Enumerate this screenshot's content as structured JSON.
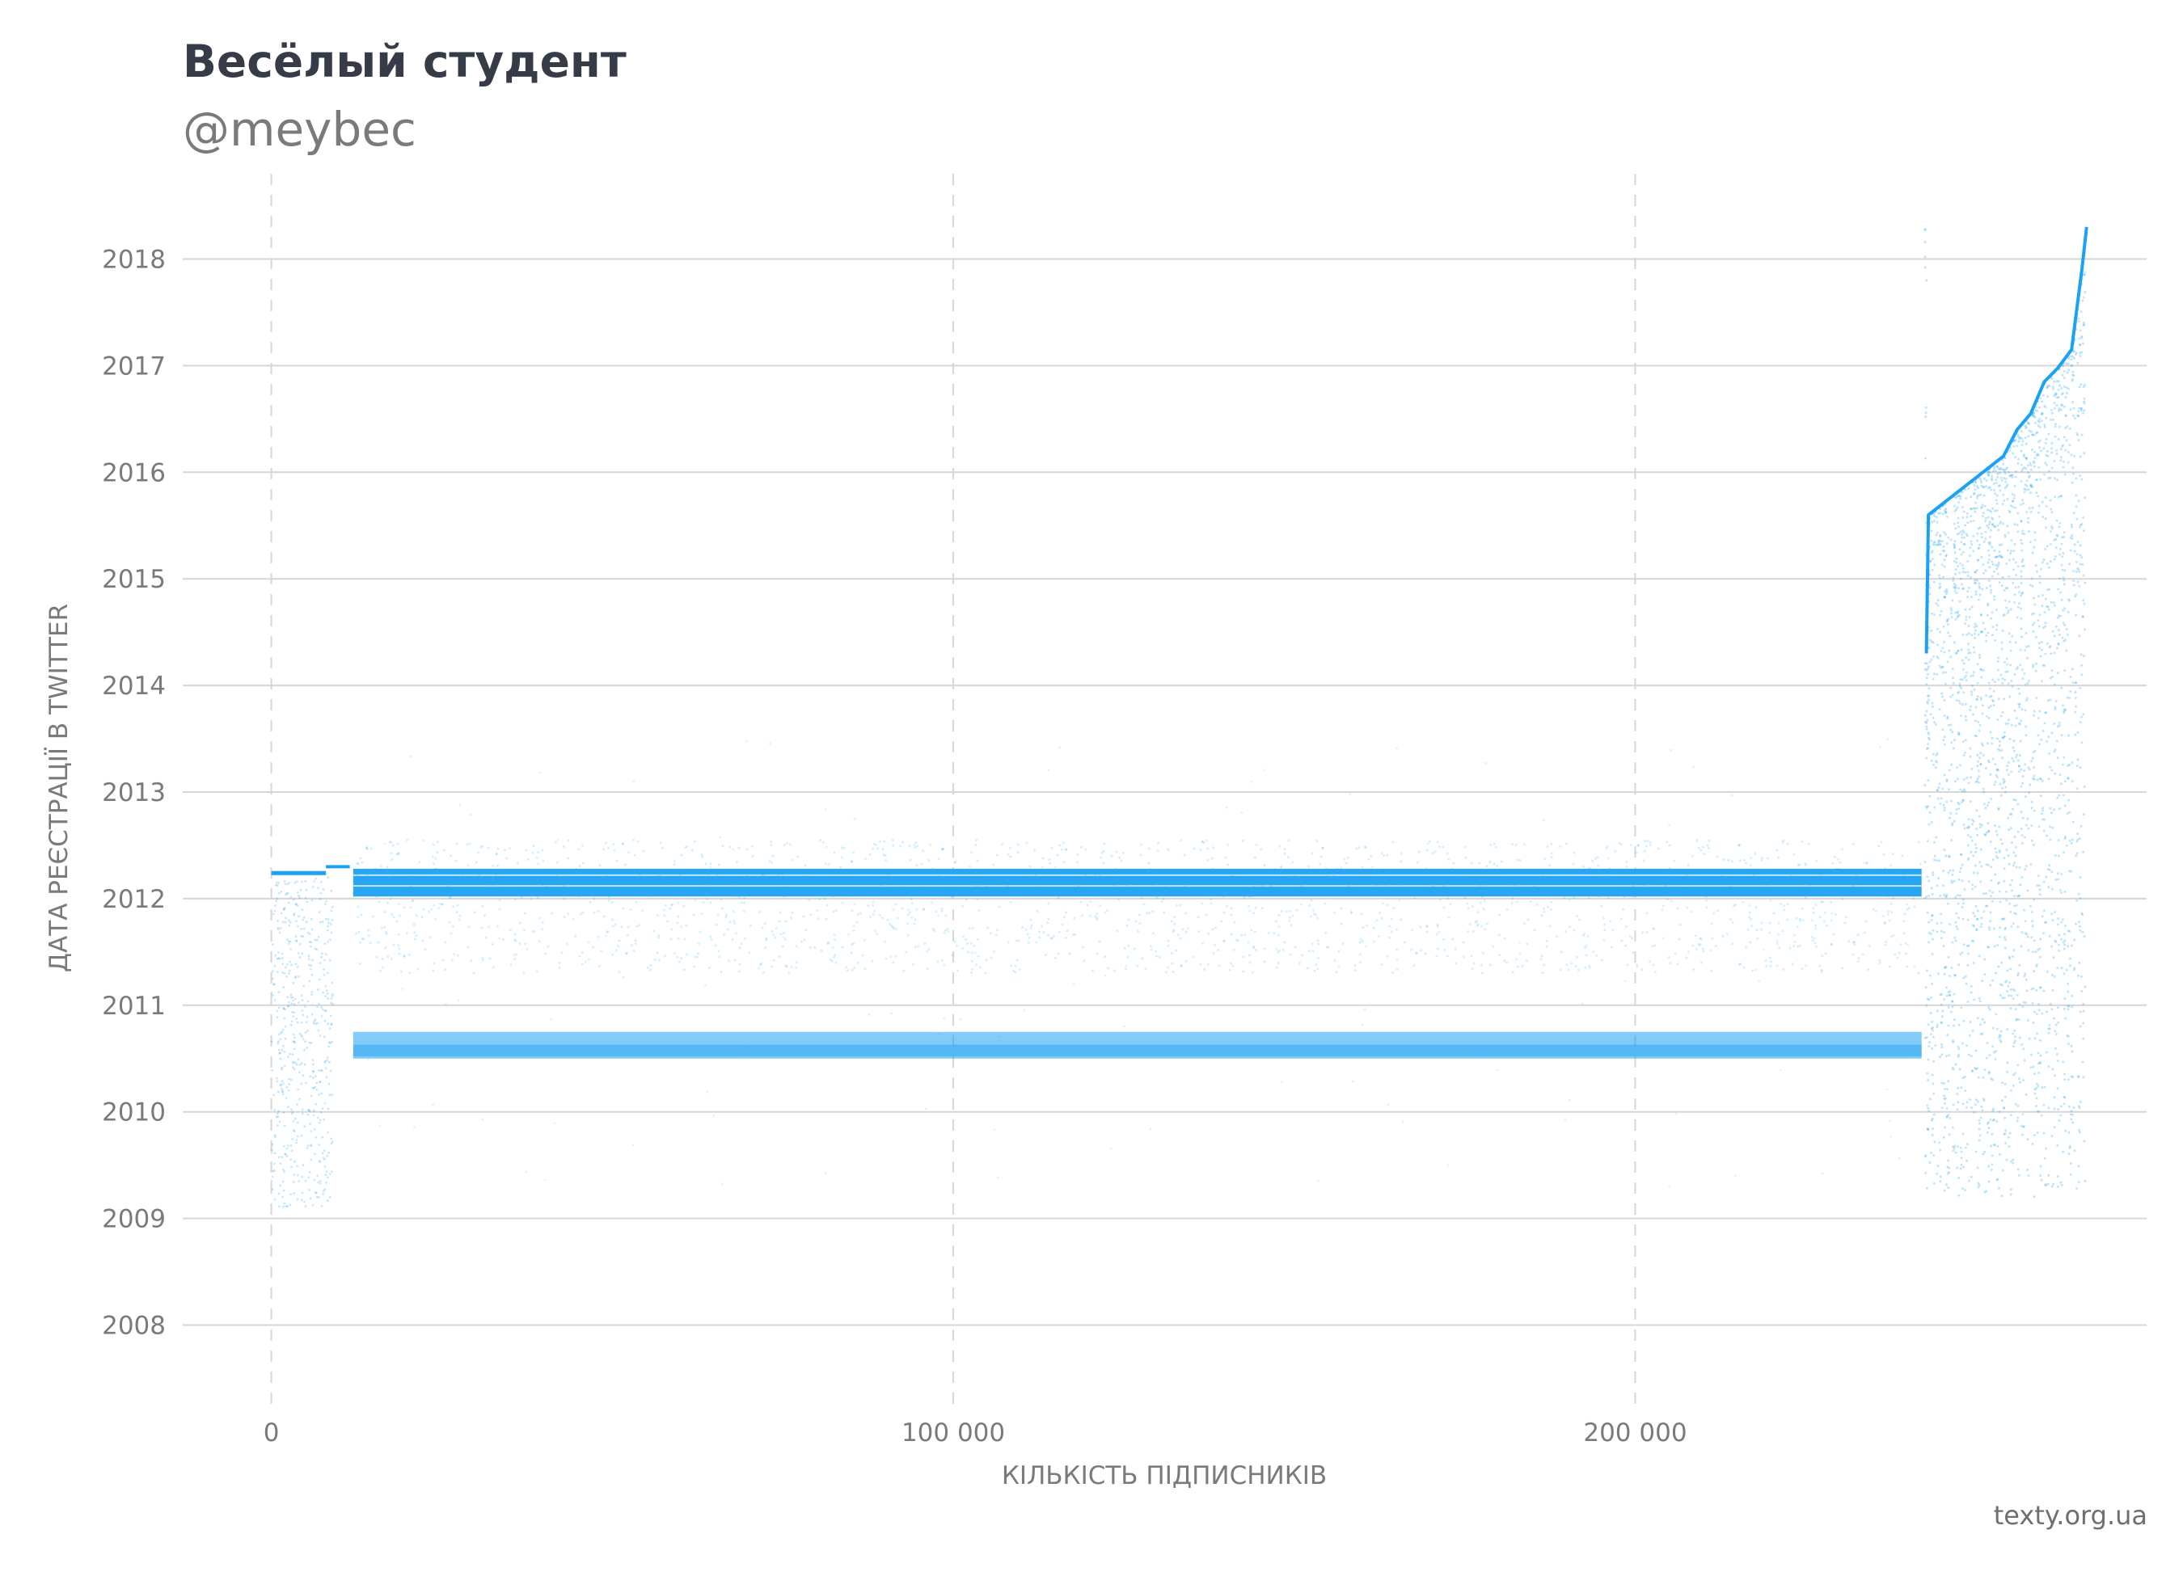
{
  "chart_data": {
    "type": "scatter",
    "title": "Весёлый студент",
    "subtitle": "@meybec",
    "xlabel": "КІЛЬКІСТЬ ПІДПИСНИКІВ",
    "ylabel": "ДАТА РЕЄСТРАЦІЇ В TWITTER",
    "xlim": [
      -13000,
      275000
    ],
    "ylim": [
      2007.2,
      2018.8
    ],
    "x_ticks": [
      0,
      100000,
      200000
    ],
    "x_tick_labels": [
      "0",
      "100 000",
      "200 000"
    ],
    "y_ticks": [
      2008,
      2009,
      2010,
      2011,
      2012,
      2013,
      2014,
      2015,
      2016,
      2017,
      2018
    ],
    "y_tick_labels": [
      "2008",
      "2009",
      "2010",
      "2011",
      "2012",
      "2013",
      "2014",
      "2015",
      "2016",
      "2017",
      "2018"
    ],
    "grid": {
      "horizontal": "solid",
      "vertical": "dashed"
    },
    "legend": "none",
    "point_color": "#1da1f2",
    "series": [
      {
        "points": [
          [
            0,
            2012.25
          ],
          [
            5000,
            2012.24
          ],
          [
            10000,
            2012.3
          ],
          [
            12000,
            2012.2
          ],
          [
            60000,
            2012.2
          ],
          [
            120000,
            2012.2
          ],
          [
            180000,
            2012.2
          ],
          [
            242000,
            2012.2
          ],
          [
            12000,
            2010.65
          ],
          [
            60000,
            2010.65
          ],
          [
            120000,
            2010.65
          ],
          [
            180000,
            2010.65
          ],
          [
            242000,
            2010.65
          ],
          [
            242500,
            2013.3
          ],
          [
            242700,
            2014.3
          ],
          [
            243000,
            2015.6
          ],
          [
            246000,
            2015.75
          ],
          [
            250000,
            2015.95
          ],
          [
            254000,
            2016.15
          ],
          [
            256000,
            2016.4
          ],
          [
            258000,
            2016.55
          ],
          [
            260000,
            2016.85
          ],
          [
            262000,
            2016.98
          ],
          [
            264000,
            2017.15
          ],
          [
            265500,
            2017.9
          ],
          [
            266200,
            2018.3
          ]
        ]
      }
    ]
  },
  "source": "texty.org.ua"
}
